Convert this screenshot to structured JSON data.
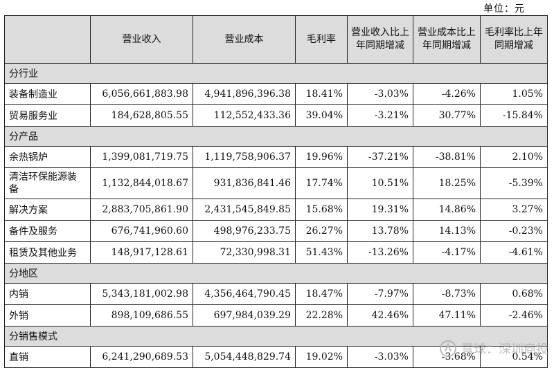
{
  "unit_label": "单位：元",
  "headers": {
    "col0": "",
    "col1": "营业收入",
    "col2": "营业成本",
    "col3": "毛利率",
    "col4": "营业收入比上年同期增减",
    "col5": "营业成本比上年同期增减",
    "col6": "毛利率比上年同期增减"
  },
  "sections": [
    {
      "title": "分行业",
      "rows": [
        {
          "label": "装备制造业",
          "revenue": "6,056,661,883.98",
          "cost": "4,941,896,396.38",
          "margin": "18.41%",
          "rev_change": "-3.03%",
          "cost_change": "-4.26%",
          "margin_change": "1.05%"
        },
        {
          "label": "贸易服务业",
          "revenue": "184,628,805.55",
          "cost": "112,552,433.36",
          "margin": "39.04%",
          "rev_change": "-3.21%",
          "cost_change": "30.77%",
          "margin_change": "-15.84%"
        }
      ]
    },
    {
      "title": "分产品",
      "rows": [
        {
          "label": "余热锅炉",
          "revenue": "1,399,081,719.75",
          "cost": "1,119,758,906.37",
          "margin": "19.96%",
          "rev_change": "-37.21%",
          "cost_change": "-38.81%",
          "margin_change": "2.10%"
        },
        {
          "label": "清洁环保能源装备",
          "revenue": "1,132,844,018.67",
          "cost": "931,836,841.46",
          "margin": "17.74%",
          "rev_change": "10.51%",
          "cost_change": "18.25%",
          "margin_change": "-5.39%"
        },
        {
          "label": "解决方案",
          "revenue": "2,883,705,861.90",
          "cost": "2,431,545,849.85",
          "margin": "15.68%",
          "rev_change": "19.31%",
          "cost_change": "14.86%",
          "margin_change": "3.27%"
        },
        {
          "label": "备件及服务",
          "revenue": "676,741,960.60",
          "cost": "498,976,233.75",
          "margin": "26.27%",
          "rev_change": "13.78%",
          "cost_change": "14.13%",
          "margin_change": "-0.23%"
        },
        {
          "label": "租赁及其他业务",
          "revenue": "148,917,128.61",
          "cost": "72,330,998.31",
          "margin": "51.43%",
          "rev_change": "-13.26%",
          "cost_change": "-4.17%",
          "margin_change": "-4.61%"
        }
      ]
    },
    {
      "title": "分地区",
      "rows": [
        {
          "label": "内销",
          "revenue": "5,343,181,002.98",
          "cost": "4,356,464,790.45",
          "margin": "18.47%",
          "rev_change": "-7.97%",
          "cost_change": "-8.73%",
          "margin_change": "0.68%"
        },
        {
          "label": "外销",
          "revenue": "898,109,686.55",
          "cost": "697,984,039.29",
          "margin": "22.28%",
          "rev_change": "42.46%",
          "cost_change": "47.11%",
          "margin_change": "-2.46%"
        }
      ]
    },
    {
      "title": "分销售模式",
      "rows": [
        {
          "label": "直销",
          "revenue": "6,241,290,689.53",
          "cost": "5,054,448,829.74",
          "margin": "19.02%",
          "rev_change": "-3.03%",
          "cost_change": "-3.68%",
          "margin_change": "0.54%"
        }
      ]
    }
  ],
  "watermark": {
    "text": "雪球：深圳商投",
    "icon": "snowball-logo-icon"
  }
}
